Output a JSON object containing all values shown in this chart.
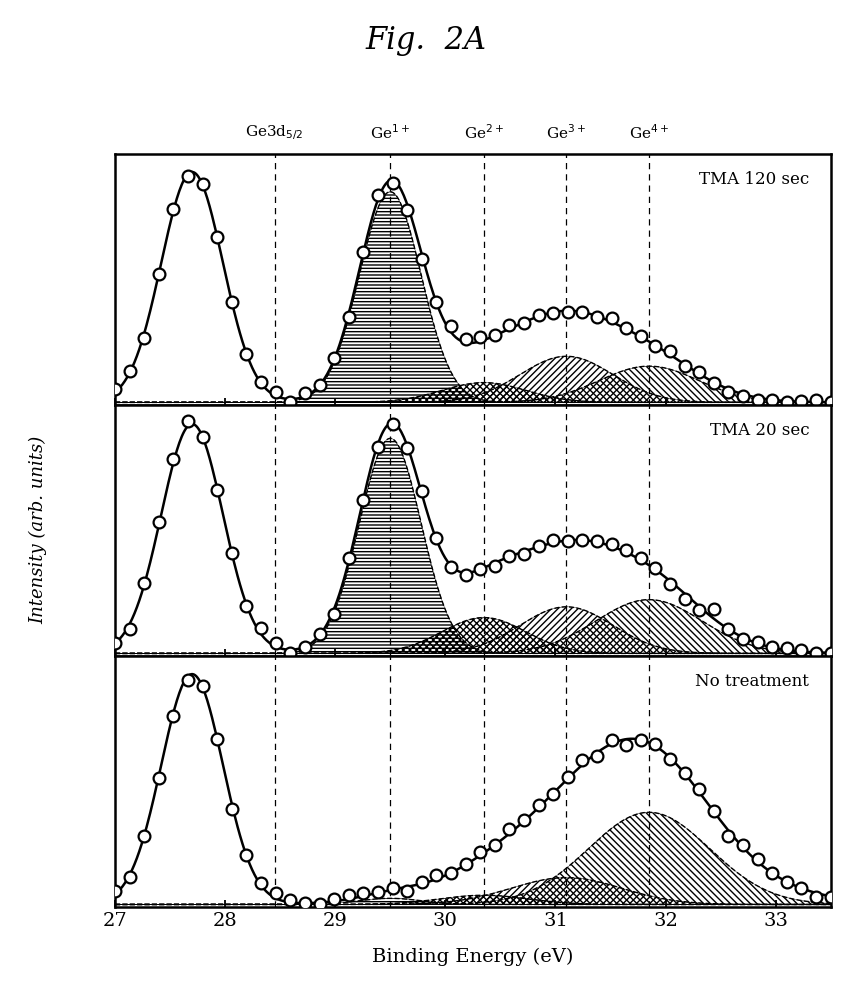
{
  "title": "Fig.  2A",
  "xlabel": "Binding Energy (eV)",
  "ylabel": "Intensity (arb. units)",
  "x_min": 27.0,
  "x_max": 33.5,
  "xticks": [
    27,
    28,
    29,
    30,
    31,
    32,
    33
  ],
  "vline_positions": [
    28.45,
    29.5,
    30.35,
    31.1,
    31.85
  ],
  "vline_labels": [
    "Ge3d$_{5/2}$",
    "Ge$^{1+}$",
    "Ge$^{2+}$",
    "Ge$^{3+}$",
    "Ge$^{4+}$"
  ],
  "panel_labels": [
    "TMA 120 sec",
    "TMA 20 sec",
    "No treatment"
  ],
  "figsize": [
    8.52,
    9.91
  ],
  "dpi": 100
}
